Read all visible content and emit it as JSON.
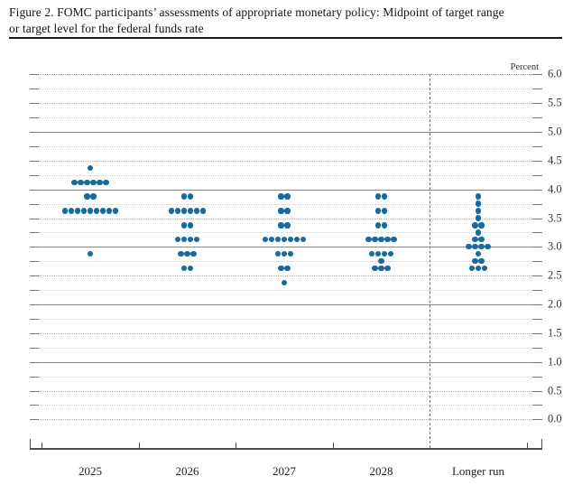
{
  "figure": {
    "title_line1": "Figure 2. FOMC participants’ assessments of appropriate monetary policy: Midpoint of target range",
    "title_line2": "or target level for the federal funds rate"
  },
  "chart_data": {
    "type": "scatter",
    "title": "FOMC participants’ assessments of appropriate monetary policy: Midpoint of target range or target level for the federal funds rate",
    "xlabel": "",
    "ylabel": "Percent",
    "ylim": [
      0.0,
      6.0
    ],
    "y_tick_step": 0.5,
    "gridline_step": 0.25,
    "grid": true,
    "legend": false,
    "y_ticks": [
      "0.0",
      "0.5",
      "1.0",
      "1.5",
      "2.0",
      "2.5",
      "3.0",
      "3.5",
      "4.0",
      "4.5",
      "5.0",
      "5.5",
      "6.0"
    ],
    "categories": [
      "2025",
      "2026",
      "2027",
      "2028",
      "Longer run"
    ],
    "series": [
      {
        "category": "2025",
        "dots": [
          {
            "rate": 4.375,
            "count": 1
          },
          {
            "rate": 4.125,
            "count": 6
          },
          {
            "rate": 3.875,
            "count": 2
          },
          {
            "rate": 3.625,
            "count": 9
          },
          {
            "rate": 2.875,
            "count": 1
          }
        ]
      },
      {
        "category": "2026",
        "dots": [
          {
            "rate": 3.875,
            "count": 2
          },
          {
            "rate": 3.625,
            "count": 6
          },
          {
            "rate": 3.375,
            "count": 2
          },
          {
            "rate": 3.125,
            "count": 4
          },
          {
            "rate": 2.875,
            "count": 3
          },
          {
            "rate": 2.625,
            "count": 2
          }
        ]
      },
      {
        "category": "2027",
        "dots": [
          {
            "rate": 3.875,
            "count": 2
          },
          {
            "rate": 3.625,
            "count": 2
          },
          {
            "rate": 3.375,
            "count": 2
          },
          {
            "rate": 3.125,
            "count": 7
          },
          {
            "rate": 2.875,
            "count": 3
          },
          {
            "rate": 2.625,
            "count": 2
          },
          {
            "rate": 2.375,
            "count": 1
          }
        ]
      },
      {
        "category": "2028",
        "dots": [
          {
            "rate": 3.875,
            "count": 2
          },
          {
            "rate": 3.625,
            "count": 2
          },
          {
            "rate": 3.375,
            "count": 2
          },
          {
            "rate": 3.125,
            "count": 5
          },
          {
            "rate": 2.875,
            "count": 4
          },
          {
            "rate": 2.75,
            "count": 1
          },
          {
            "rate": 2.625,
            "count": 3
          }
        ]
      },
      {
        "category": "Longer run",
        "dots": [
          {
            "rate": 3.875,
            "count": 1
          },
          {
            "rate": 3.75,
            "count": 1
          },
          {
            "rate": 3.625,
            "count": 1
          },
          {
            "rate": 3.5,
            "count": 1
          },
          {
            "rate": 3.375,
            "count": 2
          },
          {
            "rate": 3.25,
            "count": 1
          },
          {
            "rate": 3.125,
            "count": 2
          },
          {
            "rate": 3.0,
            "count": 4
          },
          {
            "rate": 2.875,
            "count": 1
          },
          {
            "rate": 2.75,
            "count": 2
          },
          {
            "rate": 2.625,
            "count": 3
          }
        ]
      }
    ],
    "colors": {
      "dot": "#17699E",
      "solid_gridline": "#8A8A8A",
      "half_gridline": "#B2B2B2",
      "quarter_gridline": "#CDCDCD",
      "top_gridline": "#9A9A9A",
      "axis": "#4D4D4D"
    }
  }
}
